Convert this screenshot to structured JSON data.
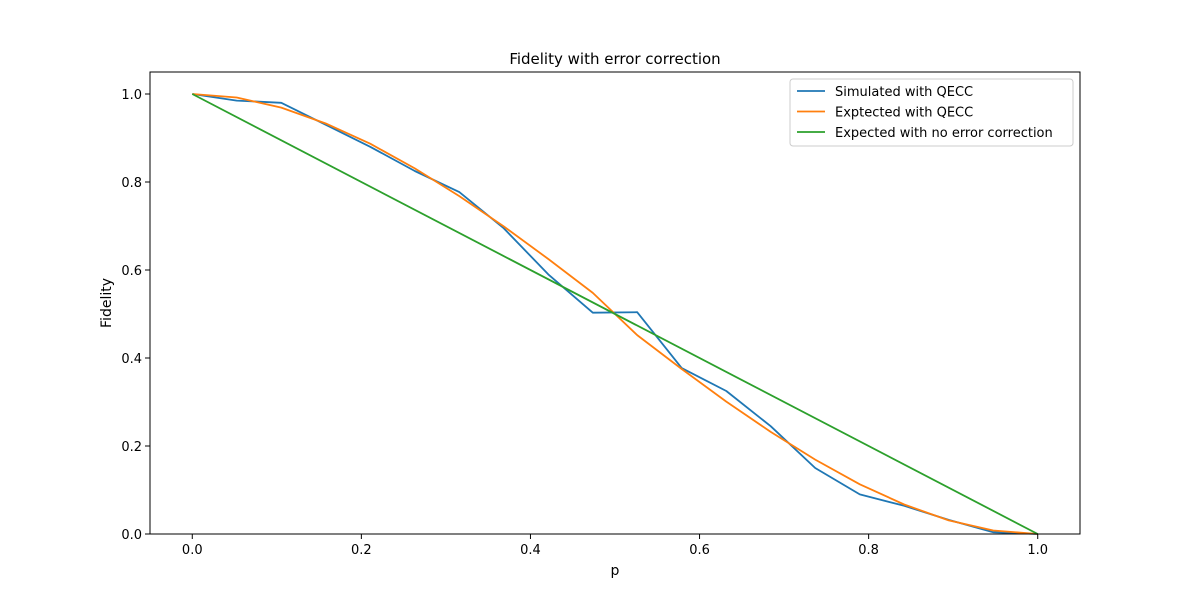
{
  "chart_data": {
    "type": "line",
    "title": "Fidelity with error correction",
    "xlabel": "p",
    "ylabel": "Fidelity",
    "xlim": [
      -0.05,
      1.05
    ],
    "ylim": [
      0.0,
      1.05
    ],
    "xticks": [
      "0.0",
      "0.2",
      "0.4",
      "0.6",
      "0.8",
      "1.0"
    ],
    "yticks": [
      "0.0",
      "0.2",
      "0.4",
      "0.6",
      "0.8",
      "1.0"
    ],
    "legend_position": "top-right",
    "grid": false,
    "series": [
      {
        "name": "Simulated with QECC",
        "color": "#1f77b4",
        "x": [
          0.0,
          0.0526,
          0.1053,
          0.1579,
          0.2105,
          0.2632,
          0.3158,
          0.3684,
          0.4211,
          0.4737,
          0.5263,
          0.5789,
          0.6316,
          0.6842,
          0.7368,
          0.7895,
          0.8421,
          0.8947,
          0.9474,
          1.0
        ],
        "y": [
          1.0,
          0.985,
          0.98,
          0.93,
          0.88,
          0.825,
          0.777,
          0.695,
          0.59,
          0.503,
          0.504,
          0.377,
          0.325,
          0.245,
          0.15,
          0.09,
          0.064,
          0.032,
          0.004,
          0.0
        ]
      },
      {
        "name": "Exptected with QECC",
        "color": "#ff7f0e",
        "x": [
          0.0,
          0.0526,
          0.1053,
          0.1579,
          0.2105,
          0.2632,
          0.3158,
          0.3684,
          0.4211,
          0.4737,
          0.5263,
          0.5789,
          0.6316,
          0.6842,
          0.7368,
          0.7895,
          0.8421,
          0.8947,
          0.9474,
          1.0
        ],
        "y": [
          1.0,
          0.992,
          0.969,
          0.933,
          0.887,
          0.831,
          0.768,
          0.699,
          0.625,
          0.548,
          0.452,
          0.375,
          0.301,
          0.232,
          0.169,
          0.113,
          0.067,
          0.031,
          0.008,
          0.0
        ]
      },
      {
        "name": "Expected with no error correction",
        "color": "#2ca02c",
        "x": [
          0.0,
          1.0
        ],
        "y": [
          1.0,
          0.0
        ]
      }
    ]
  }
}
